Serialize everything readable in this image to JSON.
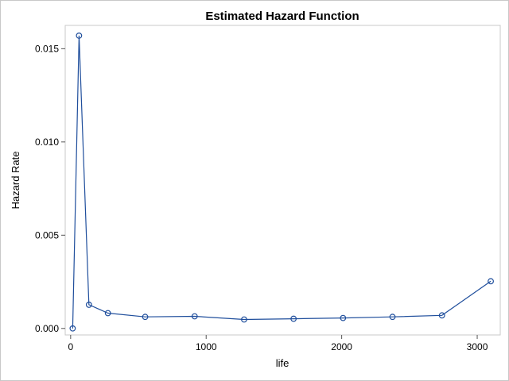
{
  "chart_data": {
    "type": "line",
    "title": "Estimated Hazard Function",
    "xlabel": "life",
    "ylabel": "Hazard Rate",
    "xlim": [
      -40,
      3170
    ],
    "ylim": [
      -0.00035,
      0.01625
    ],
    "xticks": [
      0,
      1000,
      2000,
      3000
    ],
    "xtick_labels": [
      "0",
      "1000",
      "2000",
      "3000"
    ],
    "yticks": [
      0,
      0.005,
      0.01,
      0.015
    ],
    "ytick_labels": [
      "0.000",
      "0.005",
      "0.010",
      "0.015"
    ],
    "grid": false,
    "legend": "none",
    "marker": "open-circle",
    "line_color": "#1f4e9c",
    "series": [
      {
        "x": [
          15,
          62,
          135,
          275,
          550,
          915,
          1280,
          1645,
          2010,
          2375,
          2740,
          3100
        ],
        "y": [
          0.0,
          0.0157,
          0.00127,
          0.00082,
          0.00062,
          0.00065,
          0.00048,
          0.00052,
          0.00056,
          0.00062,
          0.0007,
          0.00253
        ]
      }
    ]
  }
}
